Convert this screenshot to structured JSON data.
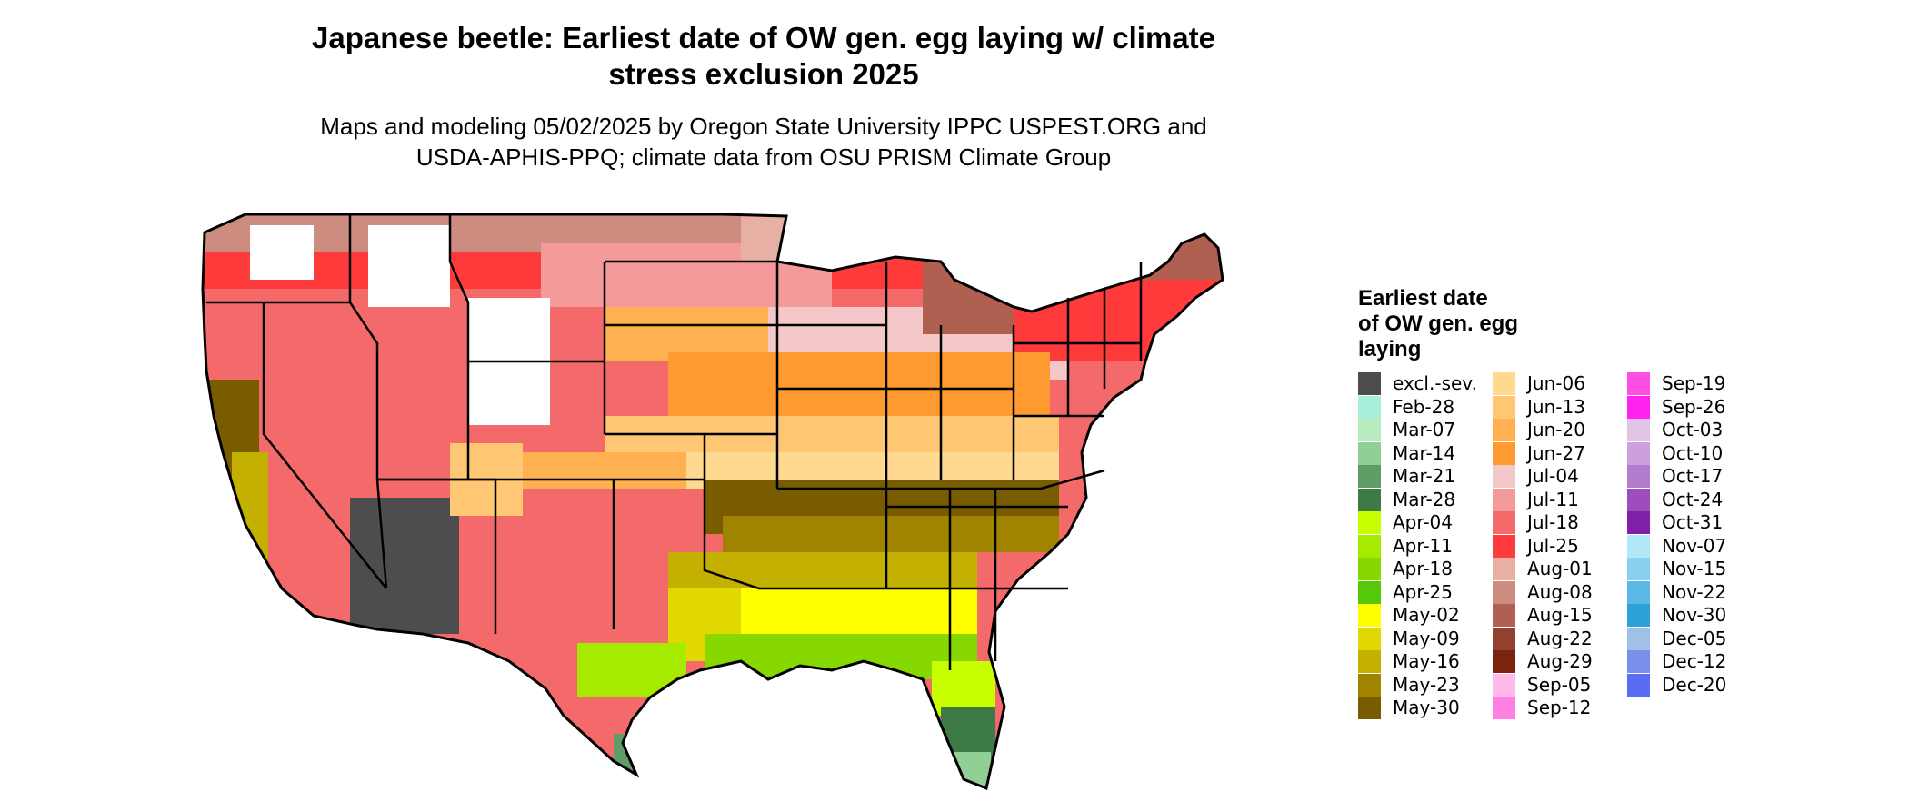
{
  "title_lines": [
    "Japanese beetle: Earliest date of OW gen. egg laying w/ climate",
    "stress exclusion 2025"
  ],
  "subtitle_lines": [
    "Maps and modeling 05/02/2025 by Oregon State University IPPC USPEST.ORG and",
    "USDA-APHIS-PPQ; climate data from OSU PRISM Climate Group"
  ],
  "legend": {
    "title_lines": [
      "Earliest date",
      "of OW gen. egg",
      "laying"
    ],
    "items": [
      {
        "label": "excl.-sev.",
        "color": "#4d4d4d"
      },
      {
        "label": "Feb-28",
        "color": "#a8f0dc"
      },
      {
        "label": "Mar-07",
        "color": "#b8ecc0"
      },
      {
        "label": "Mar-14",
        "color": "#92cf97"
      },
      {
        "label": "Mar-21",
        "color": "#5e9e66"
      },
      {
        "label": "Mar-28",
        "color": "#3e7a45"
      },
      {
        "label": "Apr-04",
        "color": "#c8ff00"
      },
      {
        "label": "Apr-11",
        "color": "#a6ea00"
      },
      {
        "label": "Apr-18",
        "color": "#86d800"
      },
      {
        "label": "Apr-25",
        "color": "#55c80a"
      },
      {
        "label": "May-02",
        "color": "#ffff00"
      },
      {
        "label": "May-09",
        "color": "#e0d800"
      },
      {
        "label": "May-16",
        "color": "#c4b000"
      },
      {
        "label": "May-23",
        "color": "#a08400"
      },
      {
        "label": "May-30",
        "color": "#7a5c00"
      },
      {
        "label": "Jun-06",
        "color": "#ffd98f"
      },
      {
        "label": "Jun-13",
        "color": "#ffc774"
      },
      {
        "label": "Jun-20",
        "color": "#ffb050"
      },
      {
        "label": "Jun-27",
        "color": "#ff9a30"
      },
      {
        "label": "Jul-04",
        "color": "#f4c8c8"
      },
      {
        "label": "Jul-11",
        "color": "#f49a9a"
      },
      {
        "label": "Jul-18",
        "color": "#f46a6a"
      },
      {
        "label": "Jul-25",
        "color": "#ff3a3a"
      },
      {
        "label": "Aug-01",
        "color": "#e8b0a4"
      },
      {
        "label": "Aug-08",
        "color": "#cc8c80"
      },
      {
        "label": "Aug-15",
        "color": "#b06050"
      },
      {
        "label": "Aug-22",
        "color": "#94402e"
      },
      {
        "label": "Aug-29",
        "color": "#7a2410"
      },
      {
        "label": "Sep-05",
        "color": "#ffb8e8"
      },
      {
        "label": "Sep-12",
        "color": "#ff80e0"
      },
      {
        "label": "Sep-19",
        "color": "#ff4ee6"
      },
      {
        "label": "Sep-26",
        "color": "#ff22f0"
      },
      {
        "label": "Oct-03",
        "color": "#e0c4e8"
      },
      {
        "label": "Oct-10",
        "color": "#cca0dc"
      },
      {
        "label": "Oct-17",
        "color": "#b47ccc"
      },
      {
        "label": "Oct-24",
        "color": "#9c4ebc"
      },
      {
        "label": "Oct-31",
        "color": "#8020a8"
      },
      {
        "label": "Nov-07",
        "color": "#b0e8f8"
      },
      {
        "label": "Nov-15",
        "color": "#88d0f0"
      },
      {
        "label": "Nov-22",
        "color": "#5cb8e6"
      },
      {
        "label": "Nov-30",
        "color": "#2ea0da"
      },
      {
        "label": "Dec-05",
        "color": "#a0c0e8"
      },
      {
        "label": "Dec-12",
        "color": "#7890ec"
      },
      {
        "label": "Dec-20",
        "color": "#5a6cf6"
      }
    ]
  }
}
